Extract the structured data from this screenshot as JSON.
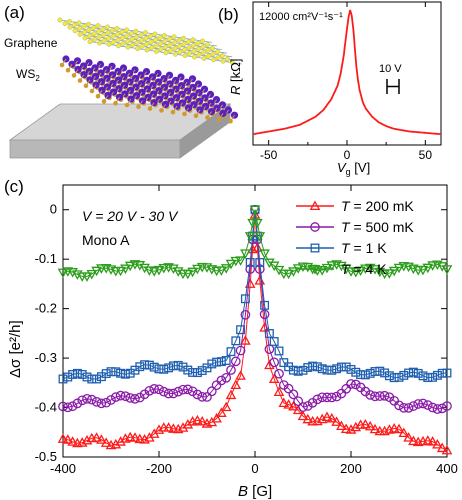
{
  "panel_a": {
    "label": "(a)",
    "graphene_label": "Graphene",
    "ws2_label": "WS",
    "ws2_sub": "2"
  },
  "colors": {
    "red": "#ff1a1a",
    "purple": "#8a1aa8",
    "blue": "#1f5fb0",
    "green": "#2a9d1a",
    "graphene": "#f2e84a",
    "graphene_edge": "#7aa6c8",
    "w_atom": "#5a20c0",
    "s_atom": "#d09a30",
    "substrate": "#b8b8b8"
  },
  "chart_data": [
    {
      "panel_label": "(b)",
      "type": "line",
      "annotation_mobility": "12000 cm²V⁻¹s⁻¹",
      "annotation_width": "10 V",
      "xlabel_italic": "V",
      "xlabel_sub": "g",
      "xlabel_unit": " [V]",
      "ylabel_italic": "R",
      "ylabel_unit": " [kΩ]",
      "xlim": [
        -60,
        60
      ],
      "xticks": [
        "-50",
        "0",
        "50"
      ],
      "series": [
        {
          "color": "#ff1a1a",
          "x": [
            -60,
            -50,
            -40,
            -30,
            -20,
            -15,
            -10,
            -6,
            -4,
            -2,
            0,
            1,
            2,
            3,
            4,
            5,
            6,
            7,
            8,
            10,
            12,
            16,
            20,
            25,
            30,
            40,
            50,
            60
          ],
          "y": [
            0.08,
            0.1,
            0.12,
            0.15,
            0.21,
            0.26,
            0.34,
            0.44,
            0.53,
            0.67,
            0.86,
            0.95,
            1.0,
            0.96,
            0.86,
            0.72,
            0.58,
            0.48,
            0.41,
            0.32,
            0.27,
            0.21,
            0.17,
            0.14,
            0.12,
            0.1,
            0.09,
            0.08
          ]
        }
      ]
    },
    {
      "panel_label": "(c)",
      "type": "line",
      "annotation_line1": "V = 20 V - 30 V",
      "annotation_line2": "Mono A",
      "xlabel_italic": "B",
      "xlabel_unit": " [G]",
      "ylabel": "Δσ [e²/h]",
      "xlim": [
        -400,
        400
      ],
      "ylim": [
        -0.5,
        0.05
      ],
      "xticks": [
        "-400",
        "-200",
        "0",
        "200",
        "400"
      ],
      "yticks": [
        "0",
        "-0.1",
        "-0.2",
        "-0.3",
        "-0.4",
        "-0.5"
      ],
      "series": [
        {
          "name": "T = 200 mK",
          "marker": "triangle-up",
          "color": "#ff1a1a",
          "x": [
            -400,
            -300,
            -200,
            -150,
            -100,
            -60,
            -30,
            -15,
            0,
            15,
            30,
            60,
            100,
            150,
            200,
            300,
            400
          ],
          "y": [
            -0.47,
            -0.47,
            -0.45,
            -0.44,
            -0.43,
            -0.4,
            -0.33,
            -0.22,
            -0.01,
            -0.21,
            -0.32,
            -0.39,
            -0.42,
            -0.42,
            -0.44,
            -0.45,
            -0.48
          ]
        },
        {
          "name": "T = 500 mK",
          "marker": "circle",
          "color": "#8a1aa8",
          "x": [
            -400,
            -300,
            -200,
            -150,
            -100,
            -60,
            -30,
            -15,
            0,
            15,
            30,
            60,
            100,
            150,
            200,
            300,
            400
          ],
          "y": [
            -0.4,
            -0.38,
            -0.37,
            -0.37,
            -0.37,
            -0.34,
            -0.28,
            -0.18,
            0.0,
            -0.18,
            -0.28,
            -0.36,
            -0.39,
            -0.38,
            -0.36,
            -0.39,
            -0.4
          ]
        },
        {
          "name": "T = 1 K",
          "marker": "square",
          "color": "#1f5fb0",
          "x": [
            -400,
            -300,
            -200,
            -150,
            -100,
            -60,
            -30,
            -15,
            0,
            15,
            30,
            60,
            100,
            150,
            200,
            300,
            400
          ],
          "y": [
            -0.34,
            -0.33,
            -0.32,
            -0.32,
            -0.32,
            -0.3,
            -0.25,
            -0.16,
            0.0,
            -0.16,
            -0.25,
            -0.31,
            -0.32,
            -0.32,
            -0.33,
            -0.33,
            -0.34
          ]
        },
        {
          "name": "T = 4 K",
          "marker": "triangle-down",
          "color": "#2a9d1a",
          "x": [
            -400,
            -300,
            -200,
            -150,
            -100,
            -60,
            -30,
            -15,
            0,
            15,
            30,
            60,
            100,
            150,
            200,
            300,
            400
          ],
          "y": [
            -0.13,
            -0.12,
            -0.12,
            -0.12,
            -0.12,
            -0.12,
            -0.11,
            -0.08,
            0.0,
            -0.08,
            -0.11,
            -0.12,
            -0.12,
            -0.12,
            -0.12,
            -0.12,
            -0.12
          ]
        }
      ]
    }
  ]
}
